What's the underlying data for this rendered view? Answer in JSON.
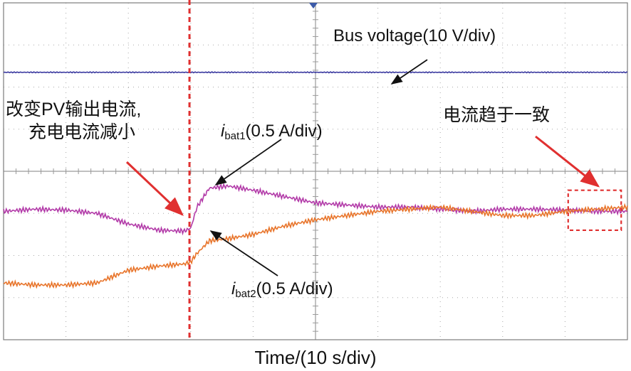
{
  "chart_data": {
    "type": "line",
    "title": "",
    "xlabel": "Time/(10 s/div)",
    "ylabel": "",
    "grid": true,
    "divisions": {
      "x": 10,
      "y": 8
    },
    "xlim": [
      0,
      10
    ],
    "ylim": [
      -4,
      4
    ],
    "series": [
      {
        "name": "Bus voltage",
        "color": "#3b3aa0",
        "x": [
          0,
          1,
          2,
          3,
          4,
          5,
          6,
          7,
          8,
          9,
          10
        ],
        "y": [
          2.35,
          2.35,
          2.35,
          2.35,
          2.35,
          2.35,
          2.35,
          2.35,
          2.35,
          2.35,
          2.35
        ]
      },
      {
        "name": "ibat1",
        "color": "#b23aa8",
        "x": [
          0,
          0.5,
          1.0,
          1.5,
          2.0,
          2.5,
          2.9,
          3.0,
          3.1,
          3.3,
          3.6,
          4.0,
          4.5,
          5.0,
          5.5,
          6.0,
          6.5,
          7.0,
          7.5,
          8.0,
          8.5,
          9.0,
          9.5,
          10.0
        ],
        "y": [
          -0.95,
          -0.9,
          -0.92,
          -1.0,
          -1.25,
          -1.4,
          -1.42,
          -1.35,
          -0.85,
          -0.4,
          -0.35,
          -0.45,
          -0.6,
          -0.75,
          -0.8,
          -0.85,
          -0.85,
          -0.9,
          -0.95,
          -0.9,
          -0.9,
          -0.92,
          -0.95,
          -0.95
        ]
      },
      {
        "name": "ibat2",
        "color": "#e8742a",
        "x": [
          0,
          0.5,
          1.0,
          1.5,
          2.0,
          2.5,
          2.9,
          3.0,
          3.1,
          3.3,
          3.6,
          4.0,
          4.5,
          5.0,
          5.5,
          6.0,
          6.5,
          7.0,
          7.5,
          8.0,
          8.5,
          9.0,
          9.5,
          10.0
        ],
        "y": [
          -2.65,
          -2.7,
          -2.7,
          -2.65,
          -2.35,
          -2.25,
          -2.2,
          -2.15,
          -1.95,
          -1.65,
          -1.6,
          -1.5,
          -1.3,
          -1.15,
          -1.05,
          -0.95,
          -0.9,
          -0.85,
          -0.95,
          -1.05,
          -1.05,
          -0.95,
          -0.9,
          -0.85
        ]
      }
    ],
    "annotations": {
      "bus": "Bus voltage(10 V/div)",
      "ibat1_sym": "i",
      "ibat1_sub": "bat1",
      "ibat1_scale": "(0.5 A/div)",
      "ibat2_sym": "i",
      "ibat2_sub": "bat2",
      "ibat2_scale": "(0.5 A/div)",
      "event_line1": "改变PV输出电流,",
      "event_line2": "充电电流减小",
      "converge": "电流趋于一致"
    },
    "event_time": 2.98,
    "converge_region": {
      "x": [
        9.05,
        9.9
      ],
      "y": [
        -1.4,
        -0.45
      ]
    },
    "colors": {
      "grid": "#a8a8a8",
      "border": "#7c7c7c",
      "event": "#e03030",
      "arrow": "#111111"
    }
  }
}
